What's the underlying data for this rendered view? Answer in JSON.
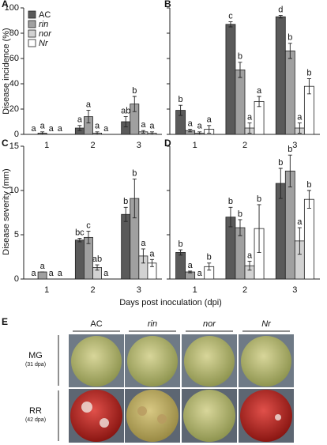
{
  "chart_data": [
    {
      "type": "bar",
      "panel": "A",
      "ylabel": "Disease incidence (%)",
      "categories": [
        "1",
        "2",
        "3"
      ],
      "ylim": [
        0,
        100
      ],
      "yticks": [
        0,
        20,
        40,
        60,
        80,
        100
      ],
      "ytick_labels": true,
      "legend": "upper left",
      "series": [
        {
          "name": "AC",
          "name_style": "normal",
          "color": "#5a5a5a",
          "values": [
            0,
            5,
            10
          ],
          "errors": [
            0,
            2,
            4
          ],
          "letters": [
            "a",
            "a",
            "ab"
          ]
        },
        {
          "name": "rin",
          "name_style": "italic",
          "color": "#a0a0a0",
          "values": [
            1,
            14,
            24
          ],
          "errors": [
            1,
            5,
            6
          ],
          "letters": [
            "a",
            "a",
            "b"
          ]
        },
        {
          "name": "nor",
          "name_style": "italic",
          "color": "#d2d2d2",
          "values": [
            0,
            1,
            2
          ],
          "errors": [
            0,
            1,
            1
          ],
          "letters": [
            "a",
            "a",
            "a"
          ]
        },
        {
          "name": "Nr",
          "name_style": "italic",
          "color": "#ffffff",
          "values": [
            0,
            0,
            1
          ],
          "errors": [
            0,
            0,
            1
          ],
          "letters": [
            "a",
            "a",
            "a"
          ]
        }
      ]
    },
    {
      "type": "bar",
      "panel": "B",
      "categories": [
        "1",
        "2",
        "3"
      ],
      "ylim": [
        0,
        100
      ],
      "yticks": [
        0,
        20,
        40,
        60,
        80,
        100
      ],
      "ytick_labels": false,
      "series": [
        {
          "color": "#5a5a5a",
          "values": [
            19,
            87,
            93
          ],
          "errors": [
            4,
            2,
            1
          ],
          "letters": [
            "b",
            "c",
            "d"
          ]
        },
        {
          "color": "#a0a0a0",
          "values": [
            3,
            51,
            66
          ],
          "errors": [
            1,
            6,
            6
          ],
          "letters": [
            "a",
            "b",
            "b"
          ]
        },
        {
          "color": "#d2d2d2",
          "values": [
            1,
            5,
            5
          ],
          "errors": [
            1,
            4,
            4
          ],
          "letters": [
            "a",
            "a",
            "a"
          ]
        },
        {
          "color": "#ffffff",
          "values": [
            4,
            26,
            38
          ],
          "errors": [
            3,
            4,
            6
          ],
          "letters": [
            "a",
            "a",
            "b"
          ]
        }
      ]
    },
    {
      "type": "bar",
      "panel": "C",
      "ylabel": "Disease severity (mm)",
      "categories": [
        "1",
        "2",
        "3"
      ],
      "ylim": [
        0,
        15
      ],
      "yticks": [
        0,
        5,
        10,
        15
      ],
      "ytick_labels": true,
      "series": [
        {
          "color": "#5a5a5a",
          "values": [
            0,
            4.4,
            7.3
          ],
          "errors": [
            0,
            0.2,
            0.8
          ],
          "letters": [
            "a",
            "bc",
            "b"
          ]
        },
        {
          "color": "#a0a0a0",
          "values": [
            0.8,
            4.7,
            9.1
          ],
          "errors": [
            0,
            0.7,
            2.2
          ],
          "letters": [
            "a",
            "c",
            "b"
          ]
        },
        {
          "color": "#d2d2d2",
          "values": [
            0,
            1.3,
            2.6
          ],
          "errors": [
            0,
            0.3,
            0.8
          ],
          "letters": [
            "a",
            "ab",
            "a"
          ]
        },
        {
          "color": "#ffffff",
          "values": [
            0,
            0,
            1.8
          ],
          "errors": [
            0,
            0,
            0.4
          ],
          "letters": [
            "a",
            "a",
            "a"
          ]
        }
      ]
    },
    {
      "type": "bar",
      "panel": "D",
      "categories": [
        "1",
        "2",
        "3"
      ],
      "ylim": [
        0,
        15
      ],
      "yticks": [
        0,
        5,
        10,
        15
      ],
      "ytick_labels": false,
      "series": [
        {
          "color": "#5a5a5a",
          "values": [
            3.0,
            7.0,
            10.8
          ],
          "errors": [
            0.3,
            1.1,
            1.7
          ],
          "letters": [
            "b",
            "b",
            "b"
          ]
        },
        {
          "color": "#a0a0a0",
          "values": [
            0.8,
            5.8,
            12.2
          ],
          "errors": [
            0.1,
            0.9,
            1.8
          ],
          "letters": [
            "a",
            "b",
            "b"
          ]
        },
        {
          "color": "#d2d2d2",
          "values": [
            0,
            1.5,
            4.3
          ],
          "errors": [
            0,
            0.5,
            1.5
          ],
          "letters": [
            "a",
            "a",
            "a"
          ]
        },
        {
          "color": "#ffffff",
          "values": [
            1.4,
            5.7,
            9.0
          ],
          "errors": [
            0.4,
            2.7,
            1.0
          ],
          "letters": [
            "b",
            "b",
            "b"
          ]
        }
      ]
    }
  ],
  "xlabel": "Days post inoculation (dpi)",
  "panel_e": {
    "letter": "E",
    "columns": [
      "AC",
      "rin",
      "nor",
      "Nr"
    ],
    "rows": [
      {
        "label": "MG",
        "note": "(31 dpa)"
      },
      {
        "label": "RR",
        "note": "(42 dpa)"
      }
    ]
  }
}
